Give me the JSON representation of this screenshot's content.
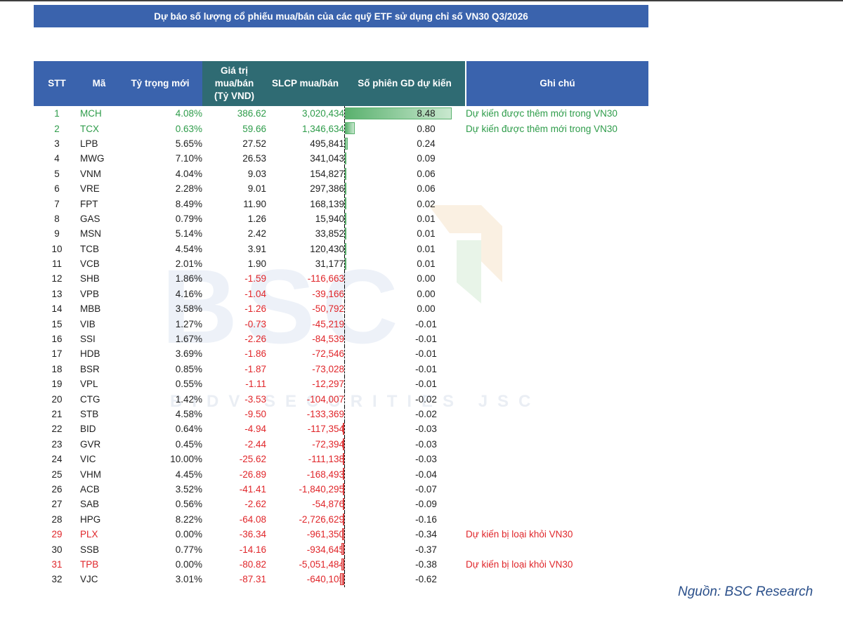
{
  "title": "Dự báo số lượng cổ phiếu mua/bán của các quỹ ETF sử dụng chỉ số VN30 Q3/2026",
  "headers": {
    "stt": "STT",
    "ma": "Mã",
    "ty_trong": "Tỷ trọng mới",
    "gia_tri_1": "Giá trị",
    "gia_tri_2": "mua/bán",
    "gia_tri_3": "(Tỷ VND)",
    "slcp": "SLCP mua/bán",
    "so_phien": "Số phiên GD dự kiến",
    "ghi_chu": "Ghi chú"
  },
  "watermark": {
    "logo": "BSC",
    "subtitle": "BIDV SECURITIES JSC"
  },
  "colors": {
    "header": "#3a63ad",
    "header_value": "#2f6b73",
    "positive": "#2e9c4a",
    "negative": "#e0262a"
  },
  "rows": [
    {
      "stt": "1",
      "ma": "MCH",
      "ty": "4.08%",
      "gt": "386.62",
      "sl": "3,020,434",
      "sp": "8.48",
      "spv": 8.48,
      "gc": "Dự kiến được thêm mới trong VN30",
      "status": "add"
    },
    {
      "stt": "2",
      "ma": "TCX",
      "ty": "0.63%",
      "gt": "59.66",
      "sl": "1,346,634",
      "sp": "0.80",
      "spv": 0.8,
      "gc": "Dự kiến được thêm mới trong VN30",
      "status": "add"
    },
    {
      "stt": "3",
      "ma": "LPB",
      "ty": "5.65%",
      "gt": "27.52",
      "sl": "495,841",
      "sp": "0.24",
      "spv": 0.24,
      "gc": "",
      "status": ""
    },
    {
      "stt": "4",
      "ma": "MWG",
      "ty": "7.10%",
      "gt": "26.53",
      "sl": "341,043",
      "sp": "0.09",
      "spv": 0.09,
      "gc": "",
      "status": ""
    },
    {
      "stt": "5",
      "ma": "VNM",
      "ty": "4.04%",
      "gt": "9.03",
      "sl": "154,827",
      "sp": "0.06",
      "spv": 0.06,
      "gc": "",
      "status": ""
    },
    {
      "stt": "6",
      "ma": "VRE",
      "ty": "2.28%",
      "gt": "9.01",
      "sl": "297,386",
      "sp": "0.06",
      "spv": 0.06,
      "gc": "",
      "status": ""
    },
    {
      "stt": "7",
      "ma": "FPT",
      "ty": "8.49%",
      "gt": "11.90",
      "sl": "168,139",
      "sp": "0.02",
      "spv": 0.02,
      "gc": "",
      "status": ""
    },
    {
      "stt": "8",
      "ma": "GAS",
      "ty": "0.79%",
      "gt": "1.26",
      "sl": "15,940",
      "sp": "0.01",
      "spv": 0.01,
      "gc": "",
      "status": ""
    },
    {
      "stt": "9",
      "ma": "MSN",
      "ty": "5.14%",
      "gt": "2.42",
      "sl": "33,852",
      "sp": "0.01",
      "spv": 0.01,
      "gc": "",
      "status": ""
    },
    {
      "stt": "10",
      "ma": "TCB",
      "ty": "4.54%",
      "gt": "3.91",
      "sl": "120,430",
      "sp": "0.01",
      "spv": 0.01,
      "gc": "",
      "status": ""
    },
    {
      "stt": "11",
      "ma": "VCB",
      "ty": "2.01%",
      "gt": "1.90",
      "sl": "31,177",
      "sp": "0.01",
      "spv": 0.01,
      "gc": "",
      "status": ""
    },
    {
      "stt": "12",
      "ma": "SHB",
      "ty": "1.86%",
      "gt": "-1.59",
      "sl": "-116,663",
      "sp": "0.00",
      "spv": 0,
      "gc": "",
      "status": ""
    },
    {
      "stt": "13",
      "ma": "VPB",
      "ty": "4.16%",
      "gt": "-1.04",
      "sl": "-39,166",
      "sp": "0.00",
      "spv": 0,
      "gc": "",
      "status": ""
    },
    {
      "stt": "14",
      "ma": "MBB",
      "ty": "3.58%",
      "gt": "-1.26",
      "sl": "-50,792",
      "sp": "0.00",
      "spv": 0,
      "gc": "",
      "status": ""
    },
    {
      "stt": "15",
      "ma": "VIB",
      "ty": "1.27%",
      "gt": "-0.73",
      "sl": "-45,219",
      "sp": "-0.01",
      "spv": -0.01,
      "gc": "",
      "status": ""
    },
    {
      "stt": "16",
      "ma": "SSI",
      "ty": "1.67%",
      "gt": "-2.26",
      "sl": "-84,539",
      "sp": "-0.01",
      "spv": -0.01,
      "gc": "",
      "status": ""
    },
    {
      "stt": "17",
      "ma": "HDB",
      "ty": "3.69%",
      "gt": "-1.86",
      "sl": "-72,546",
      "sp": "-0.01",
      "spv": -0.01,
      "gc": "",
      "status": ""
    },
    {
      "stt": "18",
      "ma": "BSR",
      "ty": "0.85%",
      "gt": "-1.87",
      "sl": "-73,028",
      "sp": "-0.01",
      "spv": -0.01,
      "gc": "",
      "status": ""
    },
    {
      "stt": "19",
      "ma": "VPL",
      "ty": "0.55%",
      "gt": "-1.11",
      "sl": "-12,297",
      "sp": "-0.01",
      "spv": -0.01,
      "gc": "",
      "status": ""
    },
    {
      "stt": "20",
      "ma": "CTG",
      "ty": "1.42%",
      "gt": "-3.53",
      "sl": "-104,007",
      "sp": "-0.02",
      "spv": -0.02,
      "gc": "",
      "status": ""
    },
    {
      "stt": "21",
      "ma": "STB",
      "ty": "4.58%",
      "gt": "-9.50",
      "sl": "-133,369",
      "sp": "-0.02",
      "spv": -0.02,
      "gc": "",
      "status": ""
    },
    {
      "stt": "22",
      "ma": "BID",
      "ty": "0.64%",
      "gt": "-4.94",
      "sl": "-117,354",
      "sp": "-0.03",
      "spv": -0.03,
      "gc": "",
      "status": ""
    },
    {
      "stt": "23",
      "ma": "GVR",
      "ty": "0.45%",
      "gt": "-2.44",
      "sl": "-72,394",
      "sp": "-0.03",
      "spv": -0.03,
      "gc": "",
      "status": ""
    },
    {
      "stt": "24",
      "ma": "VIC",
      "ty": "10.00%",
      "gt": "-25.62",
      "sl": "-111,138",
      "sp": "-0.03",
      "spv": -0.03,
      "gc": "",
      "status": ""
    },
    {
      "stt": "25",
      "ma": "VHM",
      "ty": "4.45%",
      "gt": "-26.89",
      "sl": "-168,493",
      "sp": "-0.04",
      "spv": -0.04,
      "gc": "",
      "status": ""
    },
    {
      "stt": "26",
      "ma": "ACB",
      "ty": "3.52%",
      "gt": "-41.41",
      "sl": "-1,840,295",
      "sp": "-0.07",
      "spv": -0.07,
      "gc": "",
      "status": ""
    },
    {
      "stt": "27",
      "ma": "SAB",
      "ty": "0.56%",
      "gt": "-2.62",
      "sl": "-54,876",
      "sp": "-0.09",
      "spv": -0.09,
      "gc": "",
      "status": ""
    },
    {
      "stt": "28",
      "ma": "HPG",
      "ty": "8.22%",
      "gt": "-64.08",
      "sl": "-2,726,629",
      "sp": "-0.16",
      "spv": -0.16,
      "gc": "",
      "status": ""
    },
    {
      "stt": "29",
      "ma": "PLX",
      "ty": "0.00%",
      "gt": "-36.34",
      "sl": "-961,350",
      "sp": "-0.34",
      "spv": -0.34,
      "gc": "Dự kiến bị loại khỏi VN30",
      "status": "rem"
    },
    {
      "stt": "30",
      "ma": "SSB",
      "ty": "0.77%",
      "gt": "-14.16",
      "sl": "-934,645",
      "sp": "-0.37",
      "spv": -0.37,
      "gc": "",
      "status": ""
    },
    {
      "stt": "31",
      "ma": "TPB",
      "ty": "0.00%",
      "gt": "-80.82",
      "sl": "-5,051,484",
      "sp": "-0.38",
      "spv": -0.38,
      "gc": "Dự kiến bị loại khỏi VN30",
      "status": "rem"
    },
    {
      "stt": "32",
      "ma": "VJC",
      "ty": "3.01%",
      "gt": "-87.31",
      "sl": "-640,105",
      "sp": "-0.62",
      "spv": -0.62,
      "gc": "",
      "status": ""
    }
  ],
  "source": "Nguồn: BSC Research"
}
